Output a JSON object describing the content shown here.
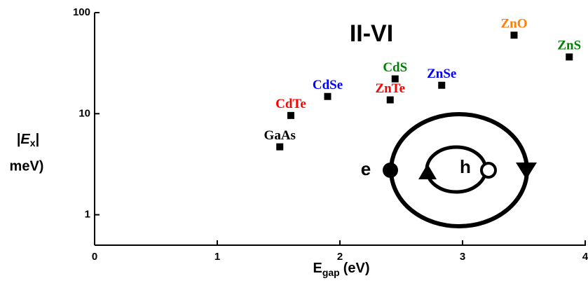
{
  "chart_data": {
    "type": "scatter",
    "annotation": "II-VI",
    "xlabel": {
      "symbol": "E",
      "sub": "gap",
      "unit": "(eV)"
    },
    "ylabel": {
      "before": "|",
      "symbol": "E",
      "sub": "x",
      "after": "|",
      "second_line": "meV)"
    },
    "xlim": [
      0,
      4
    ],
    "xticks": [
      0,
      1,
      2,
      3,
      4
    ],
    "ylim": [
      0.5,
      100
    ],
    "yticks": [
      1,
      10,
      100
    ],
    "y_scale": "log",
    "marker_color": "#000000",
    "points": [
      {
        "label": "GaAs",
        "x": 1.51,
        "y": 4.7,
        "color": "#000000"
      },
      {
        "label": "CdTe",
        "x": 1.6,
        "y": 9.6,
        "color": "#ff0000"
      },
      {
        "label": "CdSe",
        "x": 1.9,
        "y": 14.8,
        "color": "#0000ff"
      },
      {
        "label": "ZnTe",
        "x": 2.41,
        "y": 13.7,
        "color": "#ff0000"
      },
      {
        "label": "CdS",
        "x": 2.45,
        "y": 22.1,
        "color": "#008000"
      },
      {
        "label": "ZnSe",
        "x": 2.83,
        "y": 19.1,
        "color": "#0000ff"
      },
      {
        "label": "ZnO",
        "x": 3.42,
        "y": 59.8,
        "color": "#ff8000"
      },
      {
        "label": "ZnS",
        "x": 3.87,
        "y": 36.4,
        "color": "#008000"
      }
    ],
    "diagram": {
      "electron": "e",
      "hole": "h"
    }
  }
}
